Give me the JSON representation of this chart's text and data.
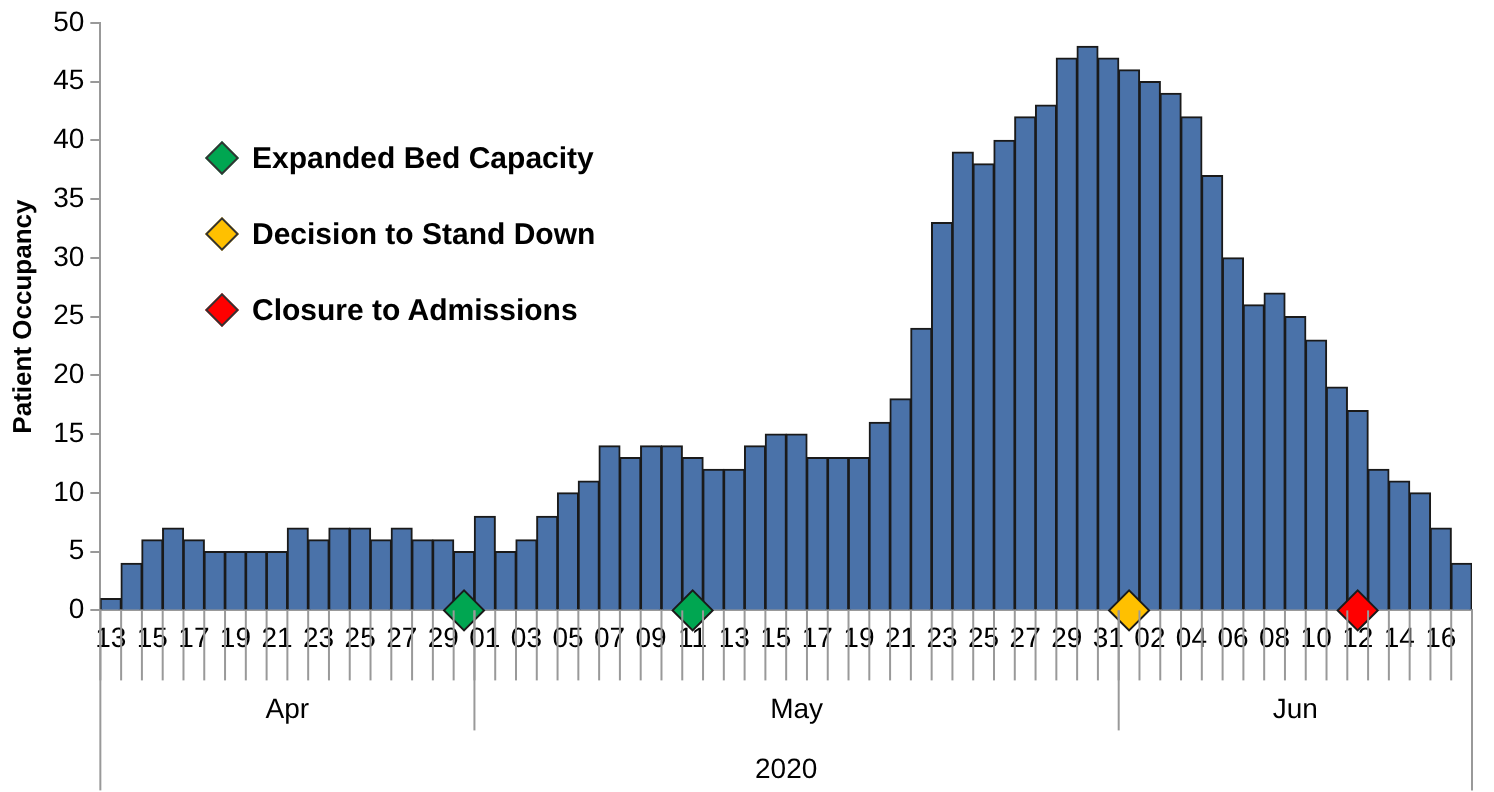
{
  "chart_data": {
    "type": "bar",
    "ylabel": "Patient Occupancy",
    "xlabel": "2020",
    "categories": [
      "13",
      null,
      "15",
      null,
      "17",
      null,
      "19",
      null,
      "21",
      null,
      "23",
      null,
      "25",
      null,
      "27",
      null,
      "29",
      null,
      "01",
      null,
      "03",
      null,
      "05",
      null,
      "07",
      null,
      "09",
      null,
      "11",
      null,
      "13",
      null,
      "15",
      null,
      "17",
      null,
      "19",
      null,
      "21",
      null,
      "23",
      null,
      "25",
      null,
      "27",
      null,
      "29",
      null,
      "31",
      null,
      "02",
      null,
      "04",
      null,
      "06",
      null,
      "08",
      null,
      "10",
      null,
      "12",
      null,
      "14",
      null,
      "16",
      null
    ],
    "series": [
      {
        "color": "#4a72a9",
        "values": [
          1,
          4,
          6,
          7,
          6,
          5,
          5,
          5,
          5,
          7,
          6,
          7,
          7,
          6,
          7,
          6,
          6,
          5,
          8,
          5,
          6,
          8,
          10,
          11,
          14,
          13,
          14,
          14,
          13,
          12,
          12,
          14,
          15,
          15,
          13,
          13,
          13,
          16,
          18,
          24,
          33,
          39,
          38,
          40,
          42,
          43,
          47,
          48,
          47,
          46,
          45,
          44,
          42,
          37,
          30,
          26,
          27,
          25,
          23,
          19,
          17,
          12,
          11,
          10,
          7,
          4
        ]
      },
      {
        "type": "scatter",
        "name": "Expanded Bed Capacity",
        "color": "#00a651",
        "values": [
          null,
          null,
          null,
          null,
          null,
          null,
          null,
          null,
          null,
          null,
          null,
          null,
          null,
          null,
          null,
          null,
          null,
          0,
          null,
          null,
          null,
          null,
          null,
          null,
          null,
          null,
          null,
          null,
          0,
          null,
          null,
          null,
          null,
          null,
          null,
          null,
          null,
          null,
          null,
          null,
          null,
          null,
          null,
          null,
          null,
          null,
          null,
          null,
          null,
          null,
          null,
          null,
          null,
          null,
          null,
          null,
          null,
          null,
          null,
          null,
          null,
          null,
          null,
          null,
          null,
          null
        ]
      },
      {
        "type": "scatter",
        "name": "Decision to Stand Down",
        "color": "#ffc000",
        "values": [
          null,
          null,
          null,
          null,
          null,
          null,
          null,
          null,
          null,
          null,
          null,
          null,
          null,
          null,
          null,
          null,
          null,
          null,
          null,
          null,
          null,
          null,
          null,
          null,
          null,
          null,
          null,
          null,
          null,
          null,
          null,
          null,
          null,
          null,
          null,
          null,
          null,
          null,
          null,
          null,
          null,
          null,
          null,
          null,
          null,
          null,
          null,
          null,
          null,
          0,
          null,
          null,
          null,
          null,
          null,
          null,
          null,
          null,
          null,
          null,
          null,
          null,
          null,
          null,
          null,
          null
        ]
      },
      {
        "type": "scatter",
        "name": "Closure to Admissions",
        "color": "#ff0000",
        "values": [
          null,
          null,
          null,
          null,
          null,
          null,
          null,
          null,
          null,
          null,
          null,
          null,
          null,
          null,
          null,
          null,
          null,
          null,
          null,
          null,
          null,
          null,
          null,
          null,
          null,
          null,
          null,
          null,
          null,
          null,
          null,
          null,
          null,
          null,
          null,
          null,
          null,
          null,
          null,
          null,
          null,
          null,
          null,
          null,
          null,
          null,
          null,
          null,
          null,
          null,
          null,
          null,
          null,
          null,
          null,
          null,
          null,
          null,
          null,
          null,
          0,
          null,
          null,
          null,
          null,
          null
        ]
      }
    ],
    "ylim": [
      0,
      50
    ],
    "yticks": [
      0,
      5,
      10,
      15,
      20,
      25,
      30,
      35,
      40,
      45,
      50
    ],
    "grid": false,
    "legend": "top left",
    "marker": "diamond",
    "annotations": [
      "Apr",
      "May",
      "Jun"
    ]
  }
}
